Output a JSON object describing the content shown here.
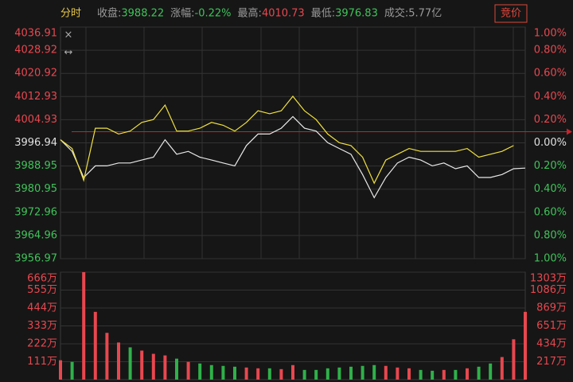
{
  "header": {
    "tab": "分时",
    "stats": [
      {
        "label": "收盘:",
        "value": "3988.22"
      },
      {
        "label": "涨幅:",
        "value": "-0.22%"
      },
      {
        "label": "最高:",
        "value": "4010.73"
      },
      {
        "label": "最低:",
        "value": "3976.83"
      },
      {
        "label": "成交:",
        "value": "5.77亿"
      }
    ],
    "button": "竞价"
  },
  "chart_data": [
    {
      "type": "line",
      "ylim": [
        3956.97,
        4036.91
      ],
      "yticks": [
        4036.91,
        4028.92,
        4020.92,
        4012.93,
        4004.93,
        3996.94,
        3988.95,
        3980.95,
        3972.96,
        3964.96,
        3956.97
      ],
      "y2lim": [
        -1,
        1
      ],
      "y2ticks": [
        {
          "value": 1,
          "label": "1.00%"
        },
        {
          "value": 0.8,
          "label": "0.80%"
        },
        {
          "value": 0.6,
          "label": "0.60%"
        },
        {
          "value": 0.4,
          "label": "0.40%"
        },
        {
          "value": 0.2,
          "label": "0.20%"
        },
        {
          "value": 0,
          "label": "0.00%"
        },
        {
          "value": -0.2,
          "label": "0.20%"
        },
        {
          "value": -0.4,
          "label": "0.40%"
        },
        {
          "value": -0.6,
          "label": "0.60%"
        },
        {
          "value": -0.8,
          "label": "0.80%"
        },
        {
          "value": -1,
          "label": "1.00%"
        }
      ],
      "ref_line": 4000.8,
      "ref_color": "#c8232c",
      "grid": true,
      "series": [
        {
          "color": "#e8e8e8",
          "values": [
            3998,
            3994,
            3985,
            3989,
            3989,
            3990,
            3990,
            3991,
            3992,
            3998,
            3993,
            3994,
            3992,
            3991,
            3990,
            3989,
            3996,
            4000,
            4000,
            4002,
            4006,
            4002,
            4001,
            3997,
            3995,
            3993,
            3986,
            3978,
            3985,
            3990,
            3992,
            3991,
            3989,
            3990,
            3988,
            3989,
            3985,
            3985,
            3986,
            3988,
            3988.22
          ]
        },
        {
          "color": "#f0e040",
          "values": [
            3998,
            3995,
            3984,
            4002,
            4002,
            4000,
            4001,
            4004,
            4005,
            4010,
            4001,
            4001,
            4002,
            4004,
            4003,
            4001,
            4004,
            4008,
            4007,
            4008,
            4013,
            4008,
            4005,
            4000,
            3997,
            3996,
            3992,
            3983,
            3991,
            3993,
            3995,
            3994,
            3994,
            3994,
            3994,
            3995,
            3992,
            3993,
            3994,
            3996,
            null
          ]
        }
      ]
    },
    {
      "type": "bar",
      "ylim": [
        0,
        666
      ],
      "yticks": [
        {
          "value": 666,
          "label": "666万"
        },
        {
          "value": 555,
          "label": "555万"
        },
        {
          "value": 444,
          "label": "444万"
        },
        {
          "value": 333,
          "label": "333万"
        },
        {
          "value": 222,
          "label": "222万"
        },
        {
          "value": 111,
          "label": "111万"
        }
      ],
      "y2lim": [
        0,
        1303
      ],
      "y2ticks": [
        {
          "value": 1303,
          "label": "1303万"
        },
        {
          "value": 1086,
          "label": "1086万"
        },
        {
          "value": 869,
          "label": "869万"
        },
        {
          "value": 651,
          "label": "651万"
        },
        {
          "value": 434,
          "label": "434万"
        },
        {
          "value": 217,
          "label": "217万"
        }
      ],
      "series": [
        {
          "color": "#e8474f",
          "values": [
            120,
            null,
            666,
            420,
            290,
            230,
            null,
            180,
            160,
            150,
            null,
            110,
            null,
            null,
            null,
            null,
            75,
            70,
            null,
            65,
            90,
            null,
            null,
            null,
            null,
            null,
            null,
            null,
            85,
            75,
            70,
            null,
            null,
            60,
            null,
            70,
            null,
            null,
            140,
            250,
            420
          ]
        },
        {
          "color": "#2fb14a",
          "values": [
            null,
            110,
            null,
            null,
            null,
            null,
            200,
            null,
            null,
            null,
            130,
            null,
            100,
            90,
            85,
            80,
            null,
            null,
            70,
            null,
            null,
            60,
            60,
            70,
            75,
            80,
            85,
            90,
            null,
            null,
            null,
            60,
            55,
            null,
            60,
            null,
            80,
            100,
            null,
            null,
            null
          ]
        }
      ]
    }
  ]
}
